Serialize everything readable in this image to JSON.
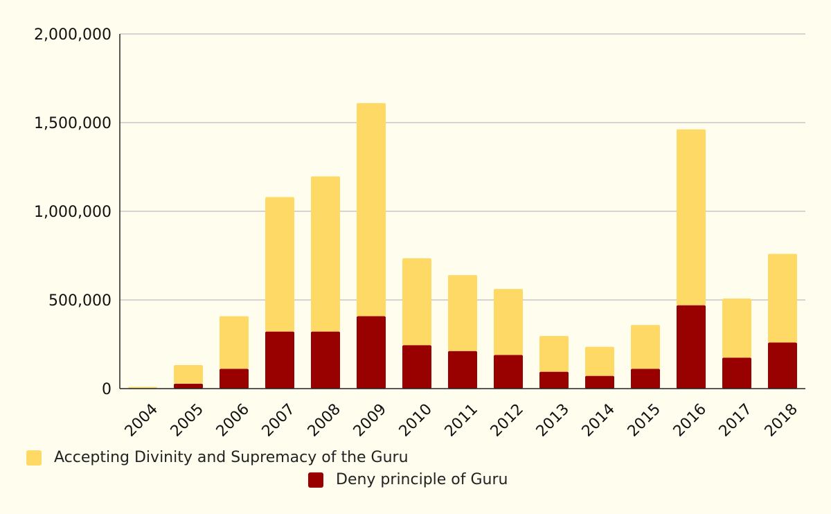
{
  "chart_data": {
    "type": "bar",
    "stacked": true,
    "title": "",
    "xlabel": "",
    "ylabel": "",
    "ylim": [
      0,
      2000000
    ],
    "yticks": [
      0,
      500000,
      1000000,
      1500000,
      2000000
    ],
    "ytick_labels": [
      "0",
      "500,000",
      "1,000,000",
      "1,500,000",
      "2,000,000"
    ],
    "grid": true,
    "legend_position": "bottom",
    "categories": [
      "2004",
      "2005",
      "2006",
      "2007",
      "2008",
      "2009",
      "2010",
      "2011",
      "2012",
      "2013",
      "2014",
      "2015",
      "2016",
      "2017",
      "2018"
    ],
    "series": [
      {
        "name": "Deny principle of Guru",
        "color": "#990000",
        "values": [
          3000,
          28000,
          112000,
          322000,
          322000,
          408000,
          245000,
          212000,
          190000,
          95000,
          72000,
          112000,
          470000,
          175000,
          260000
        ]
      },
      {
        "name": "Accepting Divinity and Supremacy of the Guru",
        "color": "#FFD966",
        "values": [
          7000,
          105000,
          296000,
          758000,
          875000,
          1202000,
          490000,
          428000,
          372000,
          202000,
          164000,
          247000,
          992000,
          333000,
          500000
        ]
      }
    ],
    "legend": [
      {
        "label": "Accepting Divinity and Supremacy of the Guru",
        "color": "#FFD966"
      },
      {
        "label": "Deny principle of Guru",
        "color": "#990000"
      }
    ]
  }
}
